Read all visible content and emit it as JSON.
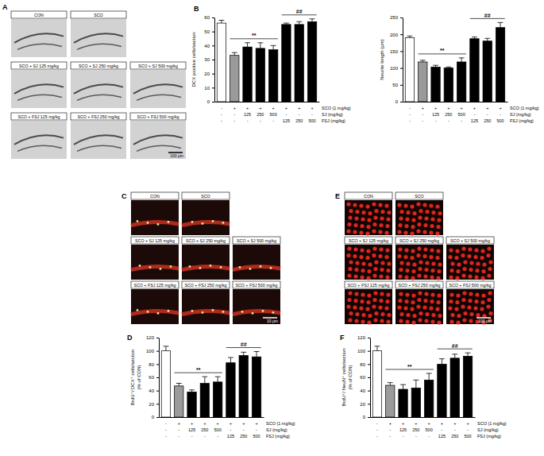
{
  "chart_data": [
    {
      "type": "bar",
      "y_label": [
        "DCX positive cells/section"
      ],
      "categories": [
        null,
        null,
        null,
        null,
        null,
        null,
        null,
        null
      ],
      "values": [
        56,
        33,
        39,
        38,
        37,
        55,
        55,
        57
      ],
      "errors": [
        2,
        2,
        3,
        4,
        3,
        1,
        2,
        2
      ],
      "colors": [
        "#ffffff",
        "#9a9a9a",
        "#000000",
        "#000000",
        "#000000",
        "#000000",
        "#000000",
        "#000000"
      ],
      "ylim": [
        0,
        60
      ],
      "yticks": [
        0,
        10,
        20,
        30,
        40,
        50,
        60
      ],
      "annotations": [
        {
          "text": "**",
          "span": [
            1,
            4
          ]
        },
        {
          "text": "##",
          "span": [
            5,
            7
          ]
        }
      ],
      "x_table": [
        {
          "label": "SCO (1 mg/kg)",
          "cells": [
            "-",
            "+",
            "+",
            "+",
            "+",
            "+",
            "+",
            "+"
          ]
        },
        {
          "label": "SJ (mg/kg)",
          "cells": [
            "-",
            "-",
            "125",
            "250",
            "500",
            "-",
            "-",
            "-"
          ]
        },
        {
          "label": "FSJ (mg/kg)",
          "cells": [
            "-",
            "-",
            "-",
            "-",
            "-",
            "125",
            "250",
            "500"
          ]
        }
      ]
    },
    {
      "type": "bar",
      "y_label": [
        "Neurite length (μm)"
      ],
      "categories": [
        null,
        null,
        null,
        null,
        null,
        null,
        null,
        null
      ],
      "values": [
        190,
        118,
        103,
        100,
        118,
        187,
        180,
        220
      ],
      "errors": [
        5,
        5,
        5,
        3,
        12,
        5,
        8,
        15
      ],
      "colors": [
        "#ffffff",
        "#9a9a9a",
        "#000000",
        "#000000",
        "#000000",
        "#000000",
        "#000000",
        "#000000"
      ],
      "ylim": [
        0,
        250
      ],
      "yticks": [
        0,
        50,
        100,
        150,
        200,
        250
      ],
      "annotations": [
        {
          "text": "**",
          "span": [
            1,
            4
          ]
        },
        {
          "text": "##",
          "span": [
            5,
            7
          ]
        }
      ],
      "x_table": [
        {
          "label": "SCO (1 mg/kg)",
          "cells": [
            "-",
            "+",
            "+",
            "+",
            "+",
            "+",
            "+",
            "+"
          ]
        },
        {
          "label": "SJ (mg/kg)",
          "cells": [
            "-",
            "-",
            "125",
            "250",
            "500",
            "-",
            "-",
            "-"
          ]
        },
        {
          "label": "FSJ (mg/kg)",
          "cells": [
            "-",
            "-",
            "-",
            "-",
            "-",
            "125",
            "250",
            "500"
          ]
        }
      ]
    },
    {
      "type": "bar",
      "y_label": [
        "BrdU⁺/ DCX⁺ cells/section",
        "(% of CON)"
      ],
      "categories": [
        null,
        null,
        null,
        null,
        null,
        null,
        null,
        null
      ],
      "values": [
        100,
        47,
        38,
        51,
        53,
        82,
        93,
        91
      ],
      "errors": [
        7,
        4,
        3,
        10,
        8,
        8,
        5,
        8
      ],
      "colors": [
        "#ffffff",
        "#9a9a9a",
        "#000000",
        "#000000",
        "#000000",
        "#000000",
        "#000000",
        "#000000"
      ],
      "ylim": [
        0,
        120
      ],
      "yticks": [
        0,
        20,
        40,
        60,
        80,
        100,
        120
      ],
      "annotations": [
        {
          "text": "**",
          "span": [
            1,
            4
          ]
        },
        {
          "text": "##",
          "span": [
            5,
            7
          ]
        }
      ],
      "x_table": [
        {
          "label": "SCO (1 mg/kg)",
          "cells": [
            "-",
            "+",
            "+",
            "+",
            "+",
            "+",
            "+",
            "+"
          ]
        },
        {
          "label": "SJ (mg/kg)",
          "cells": [
            "-",
            "-",
            "125",
            "250",
            "500",
            "-",
            "-",
            "-"
          ]
        },
        {
          "label": "FSJ (mg/kg)",
          "cells": [
            "-",
            "-",
            "-",
            "-",
            "-",
            "125",
            "250",
            "500"
          ]
        }
      ]
    },
    {
      "type": "bar",
      "y_label": [
        "BrdU⁺/ NeuN⁺ cells/section",
        "(% of CON)"
      ],
      "categories": [
        null,
        null,
        null,
        null,
        null,
        null,
        null,
        null
      ],
      "values": [
        100,
        48,
        42,
        44,
        56,
        80,
        89,
        92
      ],
      "errors": [
        7,
        4,
        7,
        12,
        10,
        8,
        6,
        5
      ],
      "colors": [
        "#ffffff",
        "#9a9a9a",
        "#000000",
        "#000000",
        "#000000",
        "#000000",
        "#000000",
        "#000000"
      ],
      "ylim": [
        0,
        120
      ],
      "yticks": [
        0,
        20,
        40,
        60,
        80,
        100,
        120
      ],
      "annotations": [
        {
          "text": "**",
          "span": [
            1,
            4
          ]
        },
        {
          "text": "##",
          "span": [
            5,
            7
          ]
        }
      ],
      "x_table": [
        {
          "label": "SCO (1 mg/kg)",
          "cells": [
            "-",
            "+",
            "+",
            "+",
            "+",
            "+",
            "+",
            "+"
          ]
        },
        {
          "label": "SJ (mg/kg)",
          "cells": [
            "-",
            "-",
            "125",
            "250",
            "500",
            "-",
            "-",
            "-"
          ]
        },
        {
          "label": "FSJ (mg/kg)",
          "cells": [
            "-",
            "-",
            "-",
            "-",
            "-",
            "125",
            "250",
            "500"
          ]
        }
      ]
    }
  ],
  "figure": {
    "chart_letters": [
      "B",
      "D",
      "F"
    ],
    "image_panels": [
      {
        "letter": "A",
        "scale_bar": "100 μm",
        "rows": [
          [
            "CON",
            "SCO"
          ],
          [
            "SCO + SJ 125 mg/kg",
            "SCO + SJ 250 mg/kg",
            "SCO + SJ 500 mg/kg"
          ],
          [
            "SCO + FSJ 125 mg/kg",
            "SCO + FSJ 250 mg/kg",
            "SCO + FSJ 500 mg/kg"
          ]
        ]
      },
      {
        "letter": "C",
        "scale_bar": "10 μm",
        "rows": [
          [
            "CON",
            "SCO"
          ],
          [
            "SCO + SJ 125 mg/kg",
            "SCO + SJ 250 mg/kg",
            "SCO + SJ 500 mg/kg"
          ],
          [
            "SCO + FSJ 125 mg/kg",
            "SCO + FSJ 250 mg/kg",
            "SCO + FSJ 500 mg/kg"
          ]
        ]
      },
      {
        "letter": "E",
        "scale_bar": "100 μm",
        "rows": [
          [
            "CON",
            "SCO"
          ],
          [
            "SCO + SJ 125 mg/kg",
            "SCO + SJ 250 mg/kg",
            "SCO + SJ 500 mg/kg"
          ],
          [
            "SCO + FSJ 125 mg/kg",
            "SCO + FSJ 250 mg/kg",
            "SCO + FSJ 500 mg/kg"
          ]
        ]
      }
    ]
  }
}
